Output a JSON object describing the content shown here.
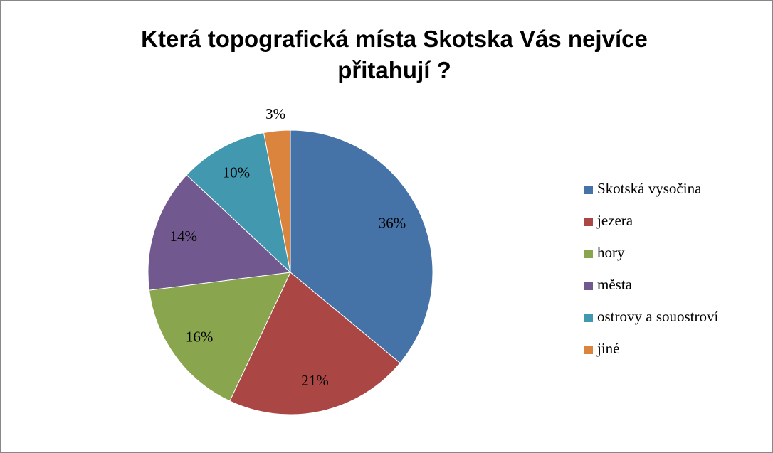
{
  "chart_data": {
    "type": "pie",
    "title": "Která topografická místa Skotska Vás nejvíce přitahují ?",
    "categories": [
      "Skotská vysočina",
      "jezera",
      "hory",
      "města",
      "ostrovy a souostroví",
      "jiné"
    ],
    "values": [
      36,
      21,
      16,
      14,
      10,
      3
    ],
    "value_labels": [
      "36%",
      "21%",
      "16%",
      "14%",
      "10%",
      "3%"
    ],
    "colors": [
      "#4572a7",
      "#aa4643",
      "#89a54e",
      "#71588f",
      "#4198af",
      "#db843d"
    ],
    "legend": "right"
  }
}
